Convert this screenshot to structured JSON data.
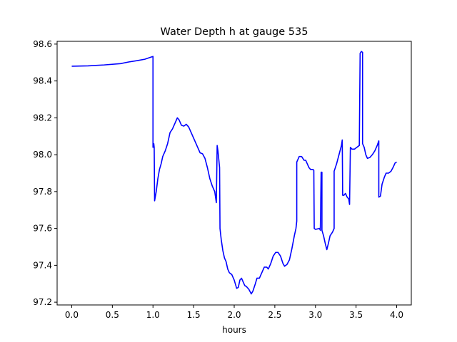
{
  "chart_data": {
    "type": "line",
    "title": "Water Depth h at gauge 535",
    "xlabel": "hours",
    "ylabel": "",
    "xlim": [
      -0.18,
      4.18
    ],
    "ylim": [
      97.185,
      98.615
    ],
    "xticks": [
      0.0,
      0.5,
      1.0,
      1.5,
      2.0,
      2.5,
      3.0,
      3.5,
      4.0
    ],
    "xtick_labels": [
      "0.0",
      "0.5",
      "1.0",
      "1.5",
      "2.0",
      "2.5",
      "3.0",
      "3.5",
      "4.0"
    ],
    "yticks": [
      97.2,
      97.4,
      97.6,
      97.8,
      98.0,
      98.2,
      98.4,
      98.6
    ],
    "ytick_labels": [
      "97.2",
      "97.4",
      "97.6",
      "97.8",
      "98.0",
      "98.2",
      "98.4",
      "98.6"
    ],
    "grid": false,
    "series": [
      {
        "color": "#0000ff",
        "points": [
          [
            0.0,
            98.48
          ],
          [
            0.2,
            98.482
          ],
          [
            0.4,
            98.487
          ],
          [
            0.6,
            98.494
          ],
          [
            0.7,
            98.503
          ],
          [
            0.8,
            98.51
          ],
          [
            0.9,
            98.518
          ],
          [
            0.96,
            98.527
          ],
          [
            1.0,
            98.533
          ],
          [
            1.0,
            98.04
          ],
          [
            1.01,
            98.06
          ],
          [
            1.015,
            98.04
          ],
          [
            1.02,
            97.75
          ],
          [
            1.04,
            97.8
          ],
          [
            1.06,
            97.87
          ],
          [
            1.08,
            97.92
          ],
          [
            1.1,
            97.95
          ],
          [
            1.12,
            97.99
          ],
          [
            1.15,
            98.02
          ],
          [
            1.18,
            98.06
          ],
          [
            1.21,
            98.12
          ],
          [
            1.24,
            98.14
          ],
          [
            1.27,
            98.17
          ],
          [
            1.3,
            98.2
          ],
          [
            1.32,
            98.19
          ],
          [
            1.35,
            98.16
          ],
          [
            1.38,
            98.155
          ],
          [
            1.41,
            98.165
          ],
          [
            1.44,
            98.15
          ],
          [
            1.47,
            98.12
          ],
          [
            1.5,
            98.09
          ],
          [
            1.53,
            98.06
          ],
          [
            1.56,
            98.03
          ],
          [
            1.58,
            98.01
          ],
          [
            1.61,
            98.005
          ],
          [
            1.64,
            97.98
          ],
          [
            1.67,
            97.93
          ],
          [
            1.7,
            97.87
          ],
          [
            1.73,
            97.83
          ],
          [
            1.76,
            97.8
          ],
          [
            1.78,
            97.74
          ],
          [
            1.79,
            98.05
          ],
          [
            1.8,
            98.02
          ],
          [
            1.82,
            97.93
          ],
          [
            1.825,
            97.6
          ],
          [
            1.84,
            97.54
          ],
          [
            1.86,
            97.48
          ],
          [
            1.88,
            97.44
          ],
          [
            1.9,
            97.42
          ],
          [
            1.92,
            97.38
          ],
          [
            1.94,
            97.36
          ],
          [
            1.97,
            97.35
          ],
          [
            2.0,
            97.32
          ],
          [
            2.03,
            97.275
          ],
          [
            2.05,
            97.28
          ],
          [
            2.07,
            97.32
          ],
          [
            2.09,
            97.33
          ],
          [
            2.11,
            97.31
          ],
          [
            2.13,
            97.29
          ],
          [
            2.15,
            97.285
          ],
          [
            2.18,
            97.27
          ],
          [
            2.21,
            97.245
          ],
          [
            2.23,
            97.26
          ],
          [
            2.26,
            97.3
          ],
          [
            2.28,
            97.33
          ],
          [
            2.31,
            97.33
          ],
          [
            2.34,
            97.36
          ],
          [
            2.37,
            97.39
          ],
          [
            2.4,
            97.39
          ],
          [
            2.42,
            97.38
          ],
          [
            2.45,
            97.41
          ],
          [
            2.48,
            97.45
          ],
          [
            2.51,
            97.47
          ],
          [
            2.54,
            97.47
          ],
          [
            2.57,
            97.45
          ],
          [
            2.6,
            97.41
          ],
          [
            2.62,
            97.395
          ],
          [
            2.65,
            97.405
          ],
          [
            2.68,
            97.43
          ],
          [
            2.71,
            97.49
          ],
          [
            2.74,
            97.56
          ],
          [
            2.76,
            97.6
          ],
          [
            2.77,
            97.64
          ],
          [
            2.77,
            97.96
          ],
          [
            2.8,
            97.99
          ],
          [
            2.83,
            97.99
          ],
          [
            2.86,
            97.97
          ],
          [
            2.88,
            97.97
          ],
          [
            2.9,
            97.95
          ],
          [
            2.92,
            97.93
          ],
          [
            2.94,
            97.92
          ],
          [
            2.97,
            97.92
          ],
          [
            2.98,
            97.915
          ],
          [
            2.985,
            97.6
          ],
          [
            3.0,
            97.595
          ],
          [
            3.05,
            97.6
          ],
          [
            3.06,
            97.59
          ],
          [
            3.07,
            97.905
          ],
          [
            3.08,
            97.905
          ],
          [
            3.08,
            97.59
          ],
          [
            3.1,
            97.56
          ],
          [
            3.12,
            97.52
          ],
          [
            3.14,
            97.485
          ],
          [
            3.16,
            97.52
          ],
          [
            3.18,
            97.56
          ],
          [
            3.21,
            97.58
          ],
          [
            3.23,
            97.6
          ],
          [
            3.23,
            97.91
          ],
          [
            3.26,
            97.95
          ],
          [
            3.29,
            98.0
          ],
          [
            3.32,
            98.05
          ],
          [
            3.33,
            98.08
          ],
          [
            3.335,
            97.78
          ],
          [
            3.35,
            97.78
          ],
          [
            3.37,
            97.79
          ],
          [
            3.39,
            97.77
          ],
          [
            3.41,
            97.76
          ],
          [
            3.42,
            97.73
          ],
          [
            3.43,
            98.04
          ],
          [
            3.45,
            98.03
          ],
          [
            3.48,
            98.03
          ],
          [
            3.51,
            98.04
          ],
          [
            3.54,
            98.05
          ],
          [
            3.55,
            98.55
          ],
          [
            3.565,
            98.56
          ],
          [
            3.58,
            98.555
          ],
          [
            3.58,
            98.06
          ],
          [
            3.6,
            98.04
          ],
          [
            3.62,
            98.0
          ],
          [
            3.64,
            97.98
          ],
          [
            3.67,
            97.985
          ],
          [
            3.7,
            98.0
          ],
          [
            3.73,
            98.02
          ],
          [
            3.76,
            98.05
          ],
          [
            3.78,
            98.075
          ],
          [
            3.78,
            97.77
          ],
          [
            3.8,
            97.775
          ],
          [
            3.82,
            97.84
          ],
          [
            3.85,
            97.88
          ],
          [
            3.87,
            97.9
          ],
          [
            3.9,
            97.9
          ],
          [
            3.93,
            97.91
          ],
          [
            3.96,
            97.935
          ],
          [
            3.98,
            97.955
          ],
          [
            4.0,
            97.96
          ]
        ]
      }
    ]
  }
}
